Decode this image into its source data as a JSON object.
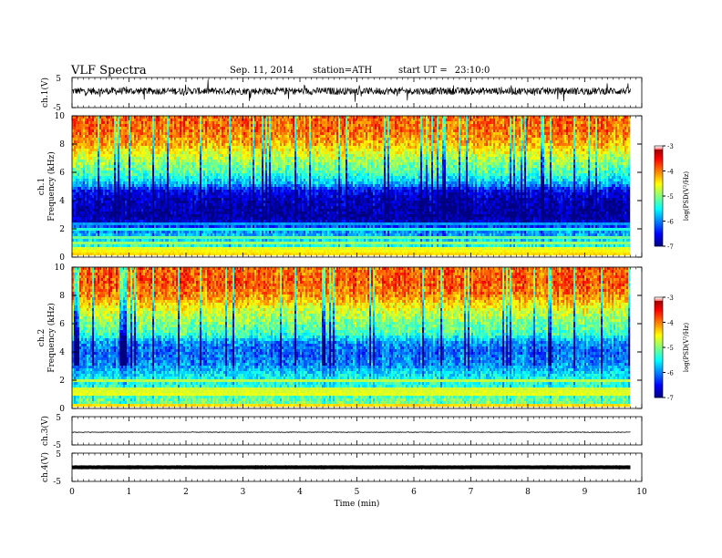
{
  "header": {
    "title": "VLF Spectra",
    "date": "Sep. 11, 2014",
    "station": "station=ATH",
    "start_label": "start UT =",
    "start_time": "23:10:0"
  },
  "chart_data": [
    {
      "type": "line",
      "panel": "ch1-waveform",
      "ylabel": "ch.1(V)",
      "ylim": [
        -5,
        5
      ],
      "yticks": [
        "5",
        "-5"
      ],
      "x_range": [
        0,
        9.8
      ],
      "baseline": 0.5,
      "noise_amplitude": 1.2
    },
    {
      "type": "heatmap",
      "panel": "ch1-spectrogram",
      "ylabel": "ch.1 Frequency (kHz)",
      "ylabel_line1": "ch.1",
      "ylabel_line2": "Frequency (kHz)",
      "ylim": [
        0,
        10
      ],
      "yticks": [
        "0",
        "2",
        "4",
        "6",
        "8",
        "10"
      ],
      "x_range": [
        0,
        9.8
      ],
      "colorbar": {
        "label": "log(PSD(V²/Hz)",
        "range": [
          -7,
          -3
        ],
        "ticks": [
          "-3",
          "-4",
          "-5",
          "-6",
          "-7"
        ]
      },
      "profile": {
        "freq_khz": [
          0,
          1,
          2,
          2.5,
          3,
          4,
          4.7,
          5.2,
          6,
          7,
          8,
          9,
          10
        ],
        "log_psd": [
          -4.8,
          -5.5,
          -6.0,
          -6.7,
          -6.9,
          -6.8,
          -6.5,
          -5.8,
          -5.2,
          -4.8,
          -4.2,
          -3.9,
          -3.9
        ]
      }
    },
    {
      "type": "heatmap",
      "panel": "ch2-spectrogram",
      "ylabel": "ch.2 Frequency (kHz)",
      "ylabel_line1": "ch.2",
      "ylabel_line2": "Frequency (kHz)",
      "ylim": [
        0,
        10
      ],
      "yticks": [
        "0",
        "2",
        "4",
        "6",
        "8",
        "10"
      ],
      "x_range": [
        0,
        9.8
      ],
      "colorbar": {
        "label": "log(PSD(V²/Hz)",
        "range": [
          -7,
          -3
        ],
        "ticks": [
          "-3",
          "-4",
          "-5",
          "-6",
          "-7"
        ]
      },
      "profile": {
        "freq_khz": [
          0,
          1,
          2,
          2.5,
          3,
          4,
          4.7,
          5.2,
          6,
          7,
          8,
          9,
          10
        ],
        "log_psd": [
          -4.9,
          -5.2,
          -5.4,
          -5.6,
          -5.9,
          -6.1,
          -5.9,
          -5.3,
          -5.0,
          -4.6,
          -4.0,
          -3.8,
          -3.9
        ]
      }
    },
    {
      "type": "line",
      "panel": "ch3-waveform",
      "ylabel": "ch.3(V)",
      "ylim": [
        -5,
        5
      ],
      "yticks": [
        "5",
        "-5"
      ],
      "x_range": [
        0,
        9.8
      ],
      "baseline": -0.5,
      "noise_amplitude": 0.1
    },
    {
      "type": "line",
      "panel": "ch4-waveform",
      "ylabel": "ch.4(V)",
      "ylim": [
        -5,
        5
      ],
      "yticks": [
        "5",
        "-5"
      ],
      "x_range": [
        0,
        9.8
      ],
      "baseline": 0,
      "noise_amplitude": 0.05
    }
  ],
  "xaxis": {
    "label": "Time (min)",
    "xlim": [
      0,
      10
    ],
    "ticks": [
      "0",
      "1",
      "2",
      "3",
      "4",
      "5",
      "6",
      "7",
      "8",
      "9",
      "10"
    ]
  }
}
